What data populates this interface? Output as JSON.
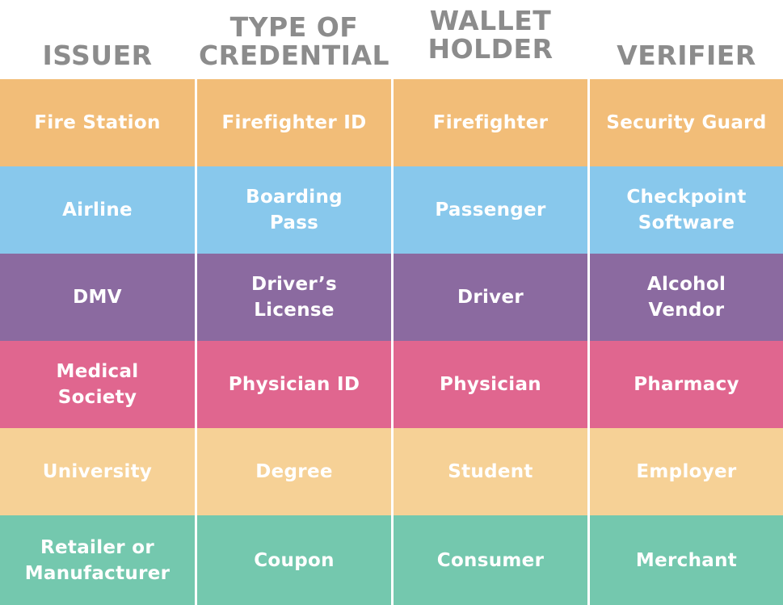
{
  "headers": {
    "issuer": "ISSUER",
    "type_of_credential": "TYPE OF\nCREDENTIAL",
    "wallet_holder": "WALLET\nHOLDER",
    "verifier": "VERIFIER"
  },
  "rows": [
    {
      "color": "#f2bd78",
      "issuer": "Fire Station",
      "credential": "Firefighter ID",
      "holder": "Firefighter",
      "verifier": "Security Guard"
    },
    {
      "color": "#88c8ec",
      "issuer": "Airline",
      "credential": "Boarding\nPass",
      "holder": "Passenger",
      "verifier": "Checkpoint\nSoftware"
    },
    {
      "color": "#8b6aa0",
      "issuer": "DMV",
      "credential": "Driver’s\nLicense",
      "holder": "Driver",
      "verifier": "Alcohol\nVendor"
    },
    {
      "color": "#e0668f",
      "issuer": "Medical\nSociety",
      "credential": "Physician ID",
      "holder": "Physician",
      "verifier": "Pharmacy"
    },
    {
      "color": "#f6d196",
      "issuer": "University",
      "credential": "Degree",
      "holder": "Student",
      "verifier": "Employer"
    },
    {
      "color": "#74c8ae",
      "issuer": "Retailer or\nManufacturer",
      "credential": "Coupon",
      "holder": "Consumer",
      "verifier": "Merchant"
    }
  ]
}
